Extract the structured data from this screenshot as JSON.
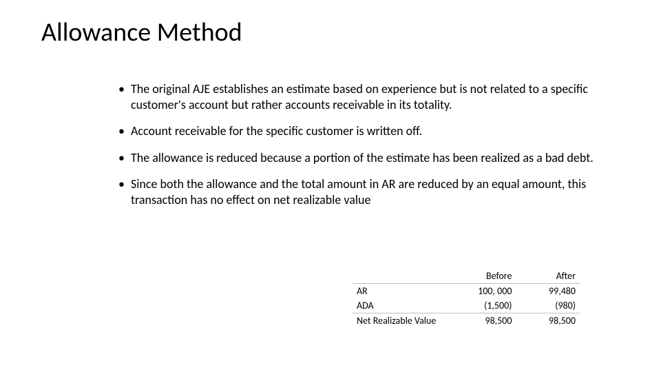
{
  "title": "Allowance Method",
  "bullets": [
    "The original AJE establishes an estimate based on experience but is not related to a specific customer's account but rather accounts receivable in its totality.",
    "Account receivable for the specific customer is written off.",
    "The allowance is reduced because a portion of the estimate has been realized as a bad debt.",
    "Since both the allowance and the total amount in AR are reduced by an equal amount, this transaction has no effect on net realizable value"
  ],
  "table": {
    "headers": [
      "",
      "Before",
      "After"
    ],
    "rows": [
      {
        "label": "AR",
        "before": "100, 000",
        "after": "99,480",
        "total": false
      },
      {
        "label": "ADA",
        "before": "(1,500)",
        "after": "(980)",
        "total": false
      },
      {
        "label": "Net Realizable Value",
        "before": "98,500",
        "after": "98,500",
        "total": true
      }
    ]
  },
  "style": {
    "background": "#ffffff",
    "text_color": "#000000",
    "title_fontsize": 38,
    "body_fontsize": 18,
    "table_fontsize": 14,
    "border_color": "#bfbfbf"
  }
}
